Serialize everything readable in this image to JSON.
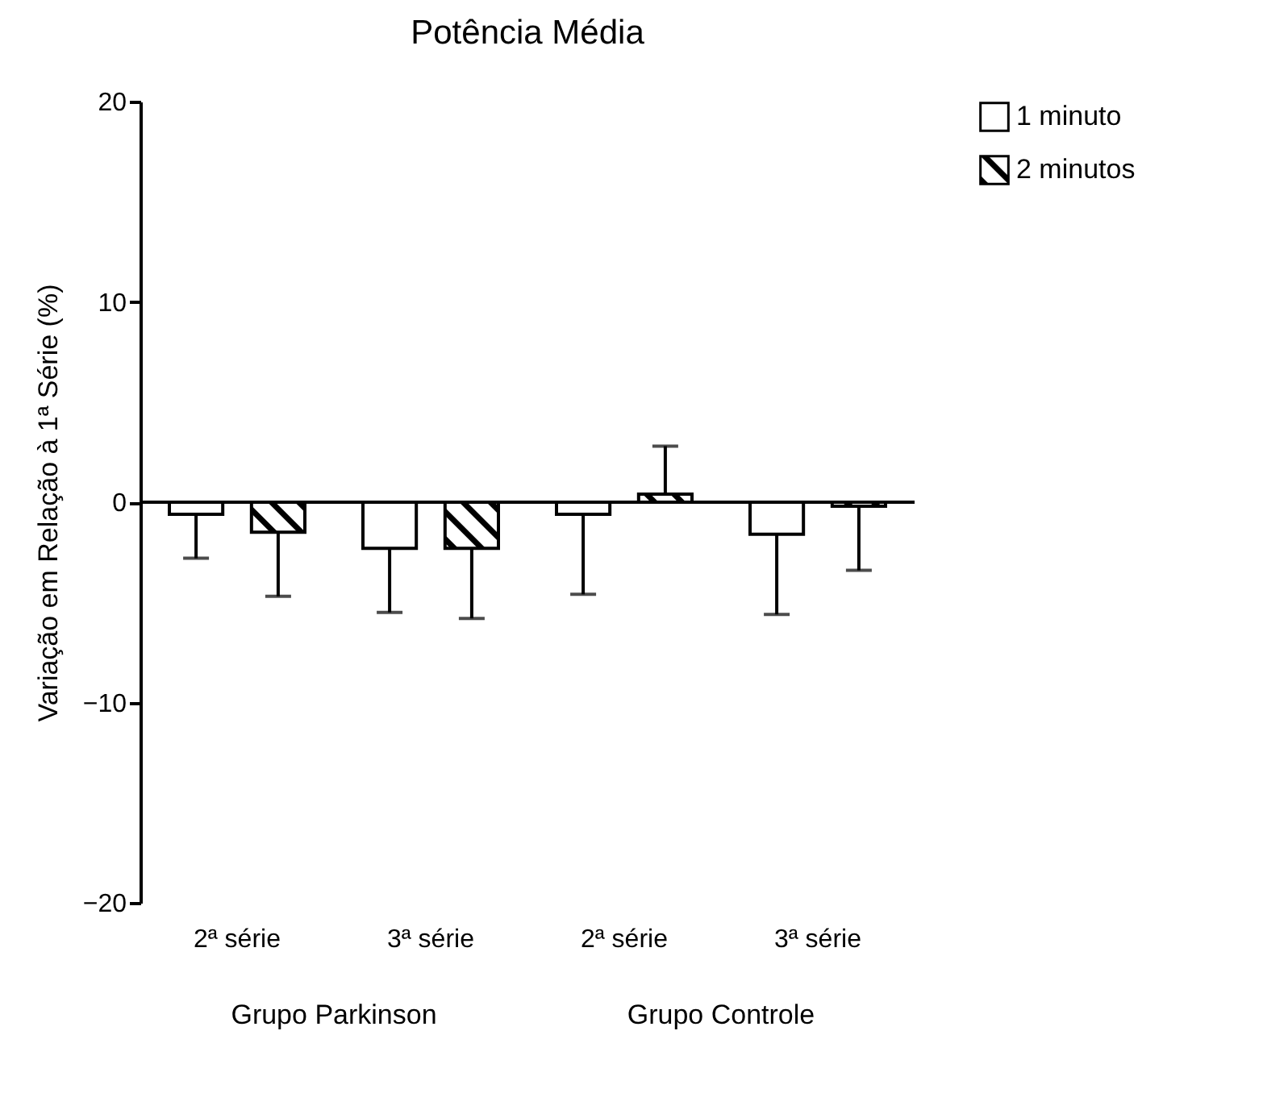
{
  "chart_data": {
    "type": "bar",
    "title": "Potência Média",
    "ylabel": "Variação em Relação à 1ª Série (%)",
    "categories": [
      "2ª série",
      "3ª série",
      "2ª série",
      "3ª série"
    ],
    "annotations": [
      "Grupo Parkinson",
      "Grupo Controle"
    ],
    "series": [
      {
        "name": "1 minuto",
        "color": "#ffffff",
        "values": [
          -0.6,
          -2.3,
          -0.6,
          -1.6
        ],
        "errors": [
          [
            -2.8,
            -0.6
          ],
          [
            -5.5,
            -2.3
          ],
          [
            -4.6,
            -0.6
          ],
          [
            -5.6,
            -1.6
          ]
        ]
      },
      {
        "name": "2 minutos",
        "color": "#000000",
        "values": [
          -1.5,
          -2.3,
          0.4,
          -0.2
        ],
        "errors": [
          [
            -4.7,
            -1.5
          ],
          [
            -5.8,
            -2.3
          ],
          [
            0.4,
            2.8
          ],
          [
            -3.4,
            -0.2
          ]
        ]
      }
    ],
    "ylim": [
      -20,
      20
    ],
    "yticks": [
      -20,
      -10,
      0,
      10,
      20
    ],
    "ref_lines": [
      {
        "axis": "y",
        "value": 0
      }
    ],
    "legend": "top right"
  }
}
